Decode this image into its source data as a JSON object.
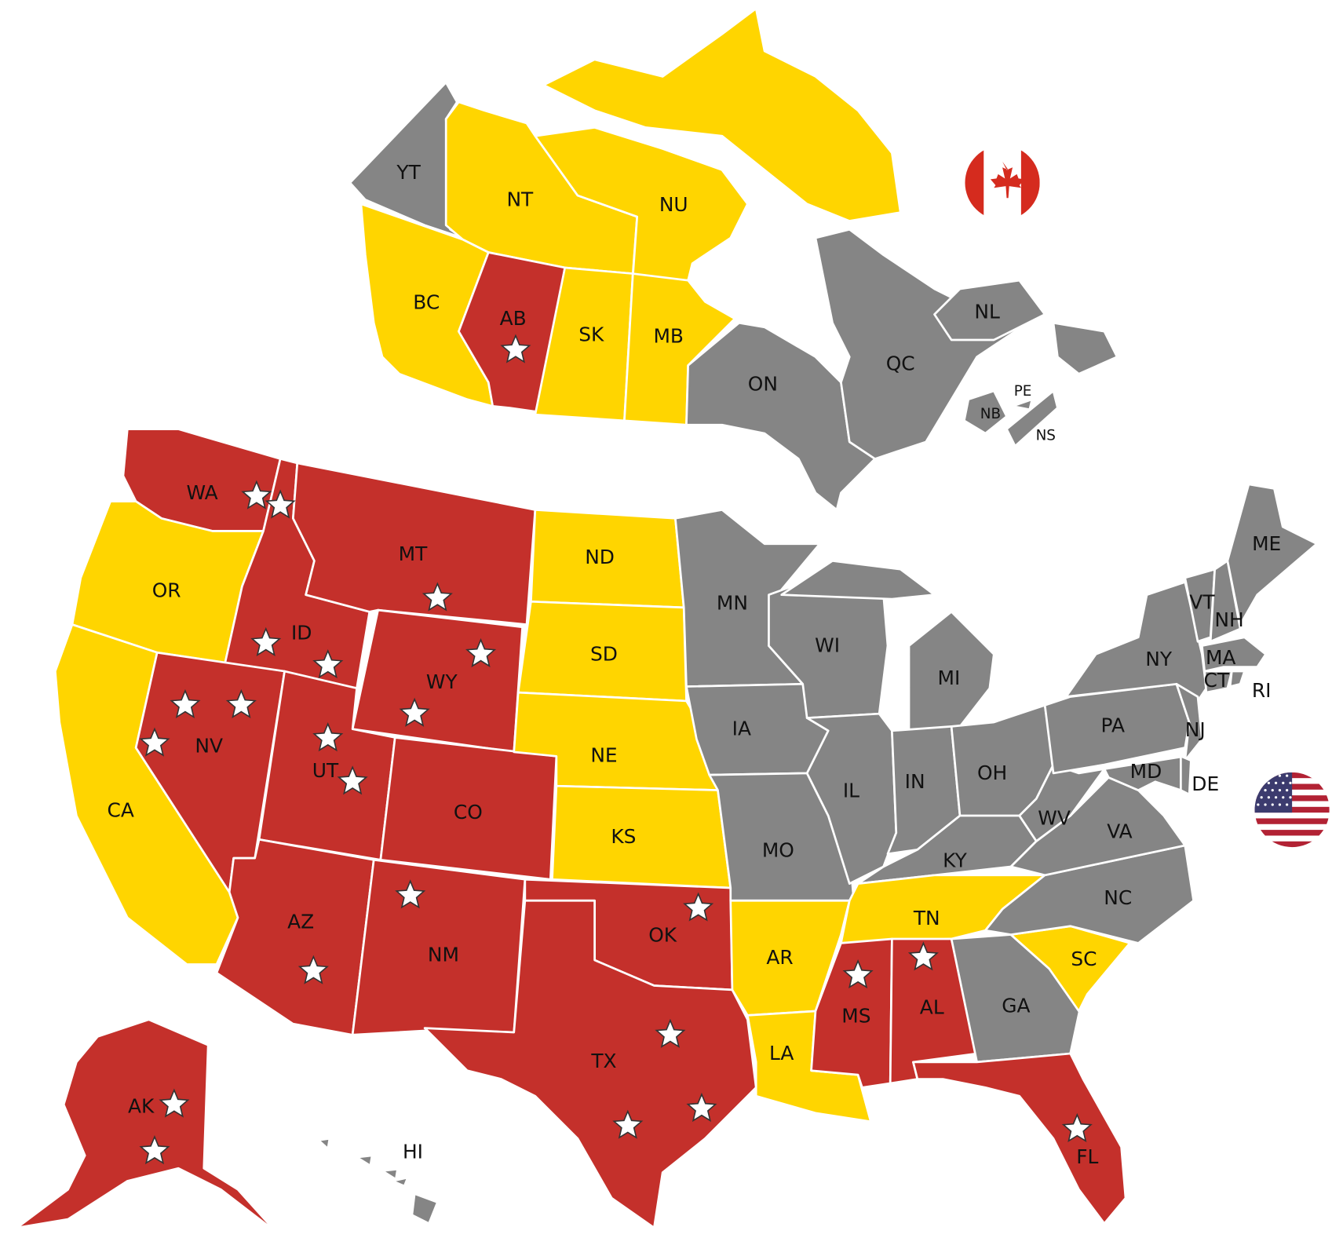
{
  "colors": {
    "red": "#C4302B",
    "yellow": "#FFD500",
    "gray": "#858585"
  },
  "flags": [
    {
      "country": "Canada",
      "icon": "canada-flag-icon"
    },
    {
      "country": "United States",
      "icon": "us-flag-icon"
    }
  ],
  "regions": [
    {
      "code": "YT",
      "country": "CA",
      "status": "gray",
      "stars": 0
    },
    {
      "code": "NT",
      "country": "CA",
      "status": "yellow",
      "stars": 0
    },
    {
      "code": "NU",
      "country": "CA",
      "status": "yellow",
      "stars": 0
    },
    {
      "code": "BC",
      "country": "CA",
      "status": "yellow",
      "stars": 0
    },
    {
      "code": "AB",
      "country": "CA",
      "status": "red",
      "stars": 1
    },
    {
      "code": "SK",
      "country": "CA",
      "status": "yellow",
      "stars": 0
    },
    {
      "code": "MB",
      "country": "CA",
      "status": "yellow",
      "stars": 0
    },
    {
      "code": "ON",
      "country": "CA",
      "status": "gray",
      "stars": 0
    },
    {
      "code": "QC",
      "country": "CA",
      "status": "gray",
      "stars": 0
    },
    {
      "code": "NL",
      "country": "CA",
      "status": "gray",
      "stars": 0
    },
    {
      "code": "NB",
      "country": "CA",
      "status": "gray",
      "stars": 0
    },
    {
      "code": "NS",
      "country": "CA",
      "status": "gray",
      "stars": 0
    },
    {
      "code": "PE",
      "country": "CA",
      "status": "gray",
      "stars": 0
    },
    {
      "code": "WA",
      "country": "US",
      "status": "red",
      "stars": 2
    },
    {
      "code": "OR",
      "country": "US",
      "status": "yellow",
      "stars": 0
    },
    {
      "code": "CA",
      "country": "US",
      "status": "yellow",
      "stars": 0
    },
    {
      "code": "ID",
      "country": "US",
      "status": "red",
      "stars": 2
    },
    {
      "code": "MT",
      "country": "US",
      "status": "red",
      "stars": 1
    },
    {
      "code": "WY",
      "country": "US",
      "status": "red",
      "stars": 2
    },
    {
      "code": "NV",
      "country": "US",
      "status": "red",
      "stars": 3
    },
    {
      "code": "UT",
      "country": "US",
      "status": "red",
      "stars": 2
    },
    {
      "code": "CO",
      "country": "US",
      "status": "red",
      "stars": 0
    },
    {
      "code": "AZ",
      "country": "US",
      "status": "red",
      "stars": 1
    },
    {
      "code": "NM",
      "country": "US",
      "status": "red",
      "stars": 1
    },
    {
      "code": "ND",
      "country": "US",
      "status": "yellow",
      "stars": 0
    },
    {
      "code": "SD",
      "country": "US",
      "status": "yellow",
      "stars": 0
    },
    {
      "code": "NE",
      "country": "US",
      "status": "yellow",
      "stars": 0
    },
    {
      "code": "KS",
      "country": "US",
      "status": "yellow",
      "stars": 0
    },
    {
      "code": "OK",
      "country": "US",
      "status": "red",
      "stars": 1
    },
    {
      "code": "TX",
      "country": "US",
      "status": "red",
      "stars": 3
    },
    {
      "code": "MN",
      "country": "US",
      "status": "gray",
      "stars": 0
    },
    {
      "code": "IA",
      "country": "US",
      "status": "gray",
      "stars": 0
    },
    {
      "code": "MO",
      "country": "US",
      "status": "gray",
      "stars": 0
    },
    {
      "code": "AR",
      "country": "US",
      "status": "yellow",
      "stars": 0
    },
    {
      "code": "LA",
      "country": "US",
      "status": "yellow",
      "stars": 0
    },
    {
      "code": "WI",
      "country": "US",
      "status": "gray",
      "stars": 0
    },
    {
      "code": "IL",
      "country": "US",
      "status": "gray",
      "stars": 0
    },
    {
      "code": "MI",
      "country": "US",
      "status": "gray",
      "stars": 0
    },
    {
      "code": "IN",
      "country": "US",
      "status": "gray",
      "stars": 0
    },
    {
      "code": "OH",
      "country": "US",
      "status": "gray",
      "stars": 0
    },
    {
      "code": "KY",
      "country": "US",
      "status": "gray",
      "stars": 0
    },
    {
      "code": "TN",
      "country": "US",
      "status": "yellow",
      "stars": 0
    },
    {
      "code": "MS",
      "country": "US",
      "status": "red",
      "stars": 1
    },
    {
      "code": "AL",
      "country": "US",
      "status": "red",
      "stars": 1
    },
    {
      "code": "GA",
      "country": "US",
      "status": "gray",
      "stars": 0
    },
    {
      "code": "FL",
      "country": "US",
      "status": "red",
      "stars": 1
    },
    {
      "code": "SC",
      "country": "US",
      "status": "yellow",
      "stars": 0
    },
    {
      "code": "NC",
      "country": "US",
      "status": "gray",
      "stars": 0
    },
    {
      "code": "VA",
      "country": "US",
      "status": "gray",
      "stars": 0
    },
    {
      "code": "WV",
      "country": "US",
      "status": "gray",
      "stars": 0
    },
    {
      "code": "PA",
      "country": "US",
      "status": "gray",
      "stars": 0
    },
    {
      "code": "NY",
      "country": "US",
      "status": "gray",
      "stars": 0
    },
    {
      "code": "NJ",
      "country": "US",
      "status": "gray",
      "stars": 0
    },
    {
      "code": "MD",
      "country": "US",
      "status": "gray",
      "stars": 0
    },
    {
      "code": "DE",
      "country": "US",
      "status": "gray",
      "stars": 0
    },
    {
      "code": "VT",
      "country": "US",
      "status": "gray",
      "stars": 0
    },
    {
      "code": "NH",
      "country": "US",
      "status": "gray",
      "stars": 0
    },
    {
      "code": "ME",
      "country": "US",
      "status": "gray",
      "stars": 0
    },
    {
      "code": "MA",
      "country": "US",
      "status": "gray",
      "stars": 0
    },
    {
      "code": "CT",
      "country": "US",
      "status": "gray",
      "stars": 0
    },
    {
      "code": "RI",
      "country": "US",
      "status": "gray",
      "stars": 0
    },
    {
      "code": "AK",
      "country": "US",
      "status": "red",
      "stars": 2
    },
    {
      "code": "HI",
      "country": "US",
      "status": "gray",
      "stars": 0
    }
  ]
}
